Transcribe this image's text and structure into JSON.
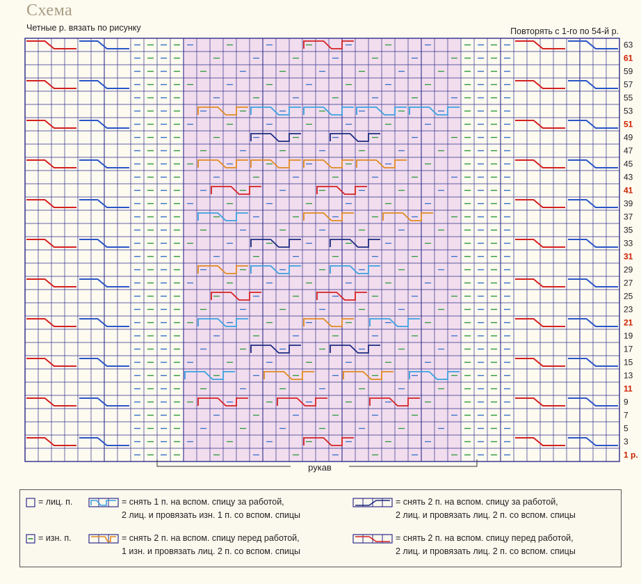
{
  "header": {
    "title": "Схема",
    "subtitle": "Четные р. вязать по рисунку",
    "repeat_note": "Повторять с 1-го по 54-й р."
  },
  "chart": {
    "row_labels": [
      "63",
      "61",
      "59",
      "57",
      "55",
      "53",
      "51",
      "49",
      "47",
      "45",
      "43",
      "41",
      "39",
      "37",
      "35",
      "33",
      "31",
      "29",
      "27",
      "25",
      "23",
      "21",
      "19",
      "17",
      "15",
      "13",
      "11",
      "9",
      "7",
      "5",
      "3",
      "1 р."
    ],
    "highlighted_rows": [
      "61",
      "51",
      "41",
      "31",
      "21",
      "11",
      "1 р."
    ],
    "sleeve_label": "рукав",
    "colors": {
      "grid": "#2e2e8a",
      "highlight_fill": "#ecd0ec",
      "row_highlight": "#cc2200",
      "red_cable": "#d42020",
      "blue_cable": "#2a55c8",
      "navy_cable": "#1a2a80",
      "orange_cable": "#e08a20",
      "lightblue_cable": "#3aa0e0",
      "purl_green": "#2a9a3a",
      "purl_blue": "#3370c8"
    }
  },
  "legend": {
    "knit": "= лиц. п.",
    "purl": "= изн. п.",
    "cable1_line1": "= снять 1 п. на вспом. спицу за работой,",
    "cable1_line2": "2 лиц. и провязать изн. 1 п. со вспом. спицы",
    "cable2_line1": "= снять 2 п. на вспом. спицу перед работой,",
    "cable2_line2": "1 изн. и провязать лиц. 2 п. со вспом. спицы",
    "cable3_line1": "= снять 2 п. на вспом. спицу за работой,",
    "cable3_line2": "2 лиц. и провязать лиц. 2 п. со вспом. спицы",
    "cable4_line1": "= снять 2 п. на вспом. спицу перед работой,",
    "cable4_line2": "2 лиц. и провязать лиц. 2 п. со вспом. спицы"
  }
}
